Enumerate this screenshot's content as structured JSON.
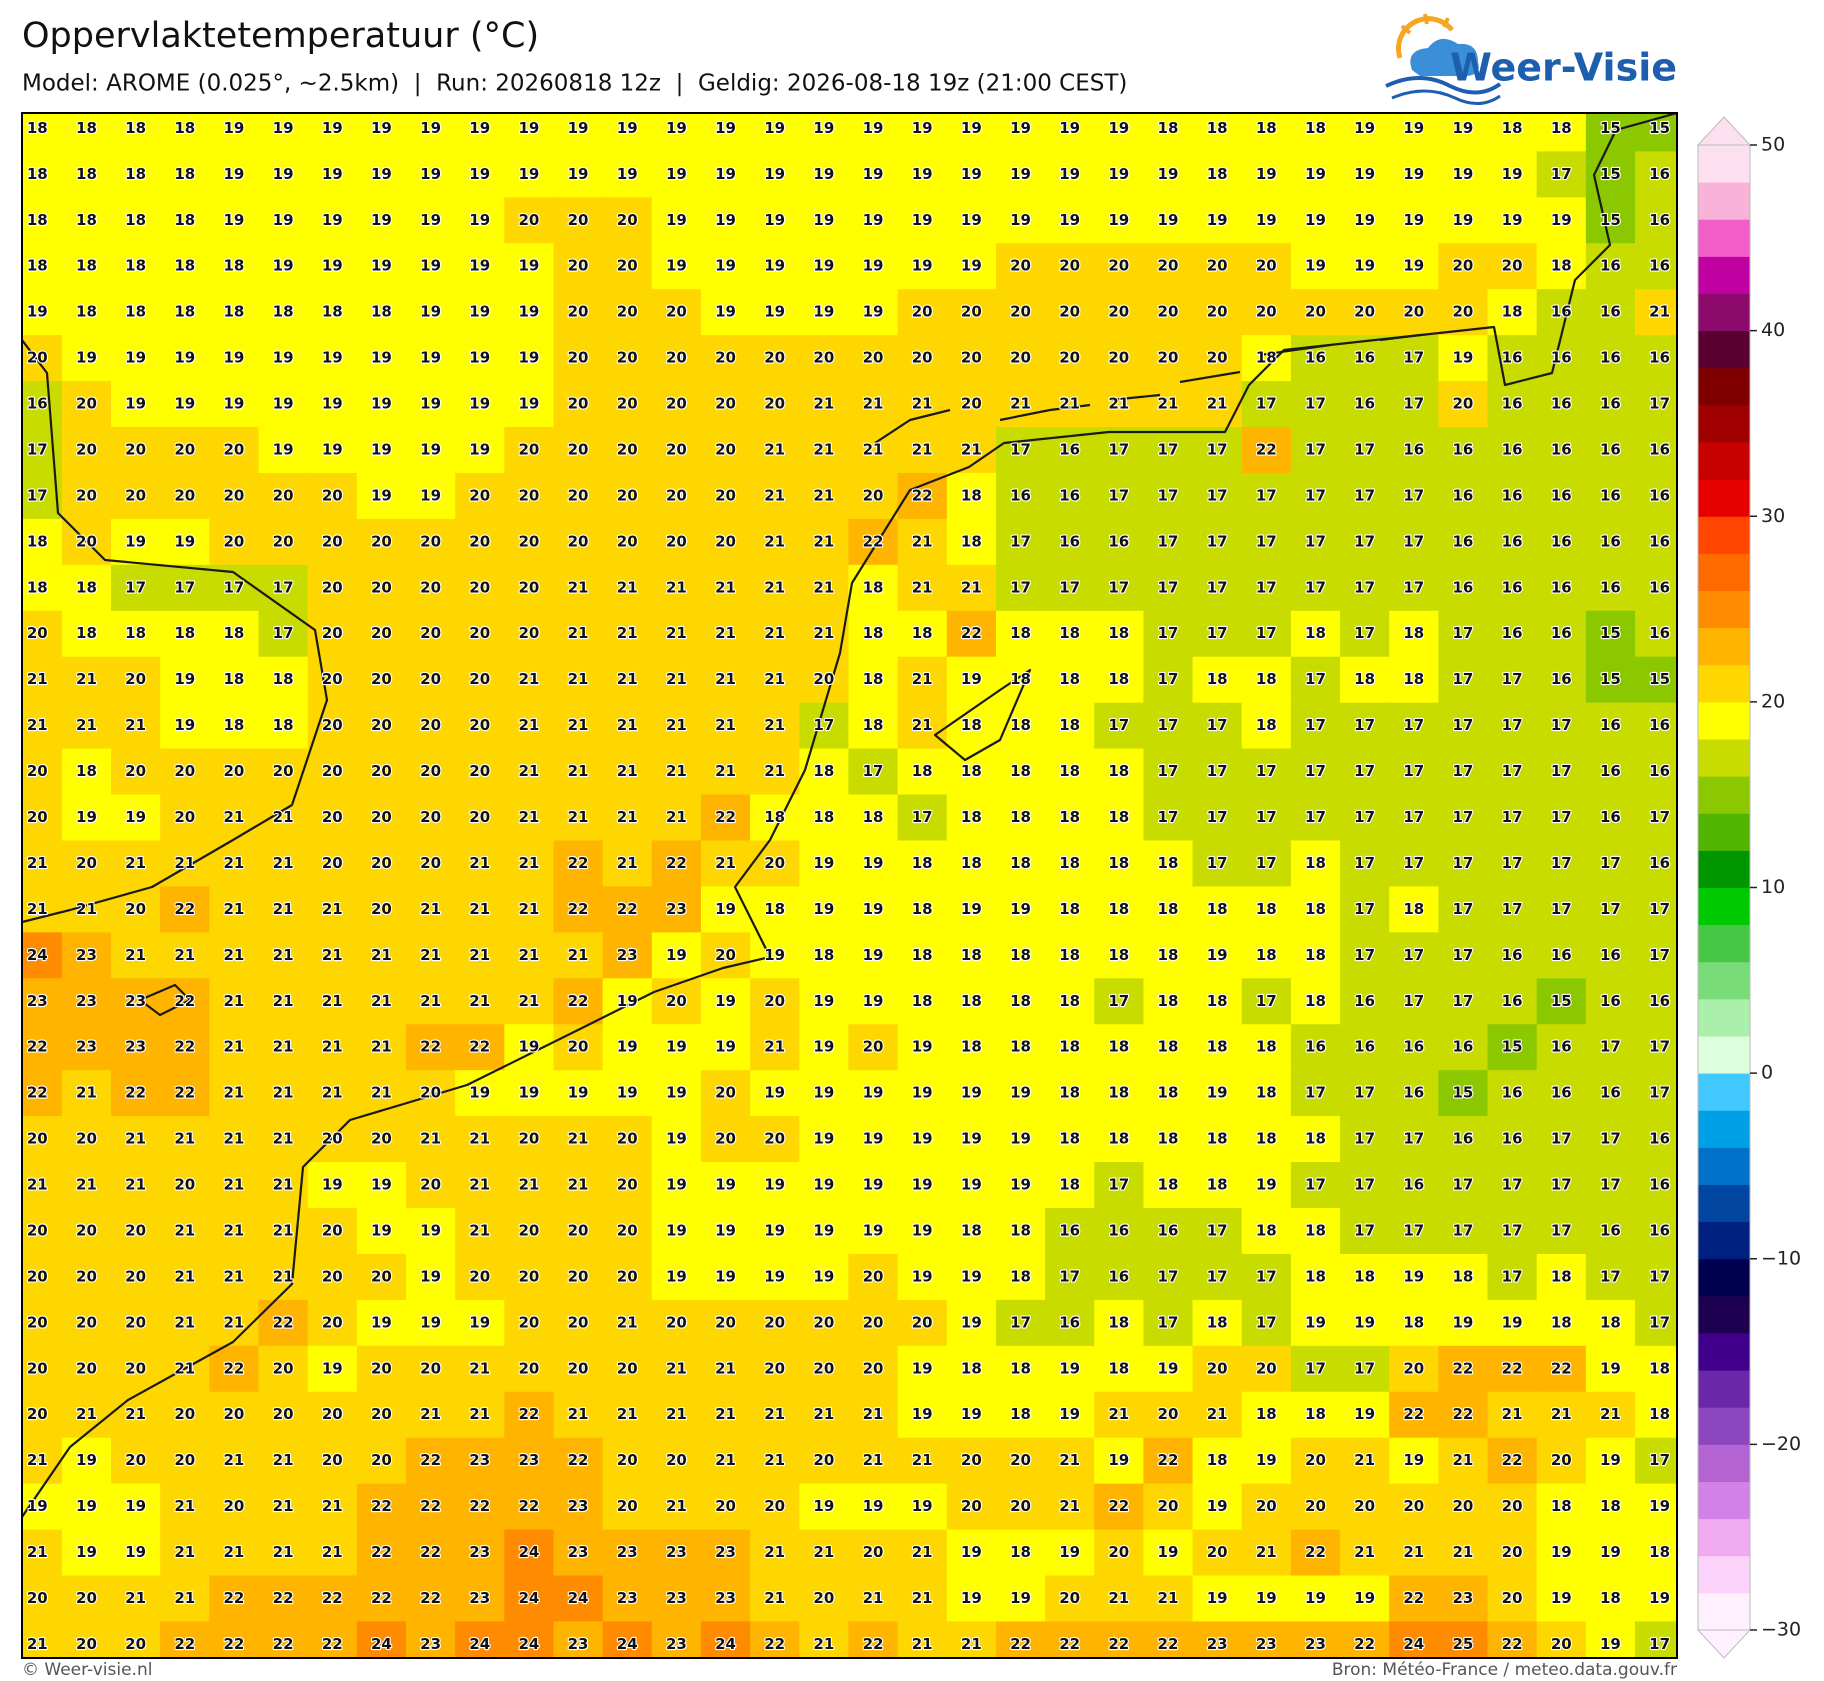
{
  "header": {
    "title": "Oppervlaktetemperatuur (°C)",
    "subtitle": "Model: AROME (0.025°, ~2.5km)  |  Run: 20260818 12z  |  Geldig: 2026-08-18 19z (21:00 CEST)"
  },
  "logo": {
    "text": "Weer-Visie"
  },
  "map": {
    "values": [
      [
        18,
        18,
        18,
        18,
        19,
        19,
        19,
        19,
        19,
        19,
        19,
        19,
        19,
        19,
        19,
        19,
        19,
        19,
        19,
        19,
        19,
        19,
        19,
        18,
        18,
        18,
        18,
        19,
        19,
        19,
        18,
        18,
        15,
        15
      ],
      [
        18,
        18,
        18,
        18,
        19,
        19,
        19,
        19,
        19,
        19,
        19,
        19,
        19,
        19,
        19,
        19,
        19,
        19,
        19,
        19,
        19,
        19,
        19,
        19,
        18,
        19,
        19,
        19,
        19,
        19,
        19,
        17,
        15,
        16
      ],
      [
        18,
        18,
        18,
        18,
        19,
        19,
        19,
        19,
        19,
        19,
        20,
        20,
        20,
        19,
        19,
        19,
        19,
        19,
        19,
        19,
        19,
        19,
        19,
        19,
        19,
        19,
        19,
        19,
        19,
        19,
        19,
        19,
        15,
        16
      ],
      [
        18,
        18,
        18,
        18,
        18,
        19,
        19,
        19,
        19,
        19,
        19,
        20,
        20,
        19,
        19,
        19,
        19,
        19,
        19,
        19,
        20,
        20,
        20,
        20,
        20,
        20,
        19,
        19,
        19,
        20,
        20,
        18,
        16,
        16
      ],
      [
        19,
        18,
        18,
        18,
        18,
        18,
        18,
        18,
        19,
        19,
        19,
        20,
        20,
        20,
        19,
        19,
        19,
        19,
        20,
        20,
        20,
        20,
        20,
        20,
        20,
        20,
        20,
        20,
        20,
        20,
        18,
        16,
        16,
        21
      ],
      [
        20,
        19,
        19,
        19,
        19,
        19,
        19,
        19,
        19,
        19,
        19,
        20,
        20,
        20,
        20,
        20,
        20,
        20,
        20,
        20,
        20,
        20,
        20,
        20,
        20,
        18,
        16,
        16,
        17,
        19,
        16,
        16,
        16,
        16
      ],
      [
        16,
        20,
        19,
        19,
        19,
        19,
        19,
        19,
        19,
        19,
        19,
        20,
        20,
        20,
        20,
        20,
        21,
        21,
        21,
        20,
        21,
        21,
        21,
        21,
        21,
        17,
        17,
        16,
        17,
        20,
        16,
        16,
        16,
        17
      ],
      [
        17,
        20,
        20,
        20,
        20,
        19,
        19,
        19,
        19,
        19,
        20,
        20,
        20,
        20,
        20,
        21,
        21,
        21,
        21,
        21,
        17,
        16,
        17,
        17,
        17,
        22,
        17,
        17,
        16,
        16,
        16,
        16,
        16,
        16
      ],
      [
        17,
        20,
        20,
        20,
        20,
        20,
        20,
        19,
        19,
        20,
        20,
        20,
        20,
        20,
        20,
        21,
        21,
        20,
        22,
        18,
        16,
        16,
        17,
        17,
        17,
        17,
        17,
        17,
        17,
        16,
        16,
        16,
        16,
        16
      ],
      [
        18,
        20,
        19,
        19,
        20,
        20,
        20,
        20,
        20,
        20,
        20,
        20,
        20,
        20,
        20,
        21,
        21,
        22,
        21,
        18,
        17,
        16,
        16,
        17,
        17,
        17,
        17,
        17,
        17,
        16,
        16,
        16,
        16,
        16
      ],
      [
        18,
        18,
        17,
        17,
        17,
        17,
        20,
        20,
        20,
        20,
        20,
        21,
        21,
        21,
        21,
        21,
        21,
        18,
        21,
        21,
        17,
        17,
        17,
        17,
        17,
        17,
        17,
        17,
        17,
        16,
        16,
        16,
        16,
        16
      ],
      [
        20,
        18,
        18,
        18,
        18,
        17,
        20,
        20,
        20,
        20,
        20,
        21,
        21,
        21,
        21,
        21,
        21,
        18,
        18,
        22,
        18,
        18,
        18,
        17,
        17,
        17,
        18,
        17,
        18,
        17,
        16,
        16,
        15,
        16
      ],
      [
        21,
        21,
        20,
        19,
        18,
        18,
        20,
        20,
        20,
        20,
        21,
        21,
        21,
        21,
        21,
        21,
        20,
        18,
        21,
        19,
        18,
        18,
        18,
        17,
        18,
        18,
        17,
        18,
        18,
        17,
        17,
        16,
        15,
        15
      ],
      [
        21,
        21,
        21,
        19,
        18,
        18,
        20,
        20,
        20,
        20,
        21,
        21,
        21,
        21,
        21,
        21,
        17,
        18,
        21,
        18,
        18,
        18,
        17,
        17,
        17,
        18,
        17,
        17,
        17,
        17,
        17,
        17,
        16,
        16
      ],
      [
        20,
        18,
        20,
        20,
        20,
        20,
        20,
        20,
        20,
        20,
        21,
        21,
        21,
        21,
        21,
        21,
        18,
        17,
        18,
        18,
        18,
        18,
        18,
        17,
        17,
        17,
        17,
        17,
        17,
        17,
        17,
        17,
        16,
        16
      ],
      [
        20,
        19,
        19,
        20,
        21,
        21,
        20,
        20,
        20,
        20,
        21,
        21,
        21,
        21,
        22,
        18,
        18,
        18,
        17,
        18,
        18,
        18,
        18,
        17,
        17,
        17,
        17,
        17,
        17,
        17,
        17,
        17,
        16,
        17
      ],
      [
        21,
        20,
        21,
        21,
        21,
        21,
        20,
        20,
        20,
        21,
        21,
        22,
        21,
        22,
        21,
        20,
        19,
        19,
        18,
        18,
        18,
        18,
        18,
        18,
        17,
        17,
        18,
        17,
        17,
        17,
        17,
        17,
        17,
        16
      ],
      [
        21,
        21,
        20,
        22,
        21,
        21,
        21,
        20,
        21,
        21,
        21,
        22,
        22,
        23,
        19,
        18,
        19,
        19,
        18,
        19,
        19,
        18,
        18,
        18,
        18,
        18,
        18,
        17,
        18,
        17,
        17,
        17,
        17,
        17
      ],
      [
        24,
        23,
        21,
        21,
        21,
        21,
        21,
        21,
        21,
        21,
        21,
        21,
        23,
        19,
        20,
        19,
        18,
        19,
        18,
        18,
        18,
        18,
        18,
        18,
        19,
        18,
        18,
        17,
        17,
        17,
        16,
        16,
        16,
        17
      ],
      [
        23,
        23,
        23,
        22,
        21,
        21,
        21,
        21,
        21,
        21,
        21,
        22,
        19,
        20,
        19,
        20,
        19,
        19,
        18,
        18,
        18,
        18,
        17,
        18,
        18,
        17,
        18,
        16,
        17,
        17,
        16,
        15,
        16,
        16
      ],
      [
        22,
        23,
        23,
        22,
        21,
        21,
        21,
        21,
        22,
        22,
        19,
        20,
        19,
        19,
        19,
        21,
        19,
        20,
        19,
        18,
        18,
        18,
        18,
        18,
        18,
        18,
        16,
        16,
        16,
        16,
        15,
        16,
        17,
        17
      ],
      [
        22,
        21,
        22,
        22,
        21,
        21,
        21,
        21,
        20,
        19,
        19,
        19,
        19,
        19,
        20,
        19,
        19,
        19,
        19,
        19,
        19,
        18,
        18,
        18,
        19,
        18,
        17,
        17,
        16,
        15,
        16,
        16,
        16,
        17
      ],
      [
        20,
        20,
        21,
        21,
        21,
        21,
        20,
        20,
        21,
        21,
        20,
        21,
        20,
        19,
        20,
        20,
        19,
        19,
        19,
        19,
        19,
        18,
        18,
        18,
        18,
        18,
        18,
        17,
        17,
        16,
        16,
        17,
        17,
        16
      ],
      [
        21,
        21,
        21,
        20,
        21,
        21,
        19,
        19,
        20,
        21,
        21,
        21,
        20,
        19,
        19,
        19,
        19,
        19,
        19,
        19,
        19,
        18,
        17,
        18,
        18,
        19,
        17,
        17,
        16,
        17,
        17,
        17,
        17,
        16
      ],
      [
        20,
        20,
        20,
        21,
        21,
        21,
        20,
        19,
        19,
        21,
        20,
        20,
        20,
        19,
        19,
        19,
        19,
        19,
        19,
        18,
        18,
        16,
        16,
        16,
        17,
        18,
        18,
        17,
        17,
        17,
        17,
        17,
        16,
        16
      ],
      [
        20,
        20,
        20,
        21,
        21,
        21,
        20,
        20,
        19,
        20,
        20,
        20,
        20,
        19,
        19,
        19,
        19,
        20,
        19,
        19,
        18,
        17,
        16,
        17,
        17,
        17,
        18,
        18,
        19,
        18,
        17,
        18,
        17,
        17
      ],
      [
        20,
        20,
        20,
        21,
        21,
        22,
        20,
        19,
        19,
        19,
        20,
        20,
        21,
        20,
        20,
        20,
        20,
        20,
        20,
        19,
        17,
        16,
        18,
        17,
        18,
        17,
        19,
        19,
        18,
        19,
        19,
        18,
        18,
        17
      ],
      [
        20,
        20,
        20,
        21,
        22,
        20,
        19,
        20,
        20,
        21,
        20,
        20,
        20,
        21,
        21,
        20,
        20,
        20,
        19,
        18,
        18,
        19,
        18,
        19,
        20,
        20,
        17,
        17,
        20,
        22,
        22,
        22,
        19,
        18
      ],
      [
        20,
        21,
        21,
        20,
        20,
        20,
        20,
        20,
        21,
        21,
        22,
        21,
        21,
        21,
        21,
        21,
        21,
        21,
        19,
        19,
        18,
        19,
        21,
        20,
        21,
        18,
        18,
        19,
        22,
        22,
        21,
        21,
        21,
        18
      ],
      [
        21,
        19,
        20,
        20,
        21,
        21,
        20,
        20,
        22,
        23,
        23,
        22,
        20,
        20,
        21,
        21,
        20,
        21,
        21,
        20,
        20,
        21,
        19,
        22,
        18,
        19,
        20,
        21,
        19,
        21,
        22,
        20,
        19,
        17
      ],
      [
        19,
        19,
        19,
        21,
        20,
        21,
        21,
        22,
        22,
        22,
        22,
        23,
        20,
        21,
        20,
        20,
        19,
        19,
        19,
        20,
        20,
        21,
        22,
        20,
        19,
        20,
        20,
        20,
        20,
        20,
        20,
        18,
        18,
        19
      ],
      [
        21,
        19,
        19,
        21,
        21,
        21,
        21,
        22,
        22,
        23,
        24,
        23,
        23,
        23,
        23,
        21,
        21,
        20,
        21,
        19,
        18,
        19,
        20,
        19,
        20,
        21,
        22,
        21,
        21,
        21,
        20,
        19,
        19,
        18
      ],
      [
        20,
        20,
        21,
        21,
        22,
        22,
        22,
        22,
        22,
        23,
        24,
        24,
        23,
        23,
        23,
        21,
        20,
        21,
        21,
        19,
        19,
        20,
        21,
        21,
        19,
        19,
        19,
        19,
        22,
        23,
        20,
        19,
        18,
        19
      ],
      [
        21,
        20,
        20,
        22,
        22,
        22,
        22,
        24,
        23,
        24,
        24,
        23,
        24,
        23,
        24,
        22,
        21,
        22,
        21,
        21,
        22,
        22,
        22,
        22,
        23,
        23,
        23,
        22,
        24,
        25,
        22,
        20,
        19,
        17
      ]
    ]
  },
  "colorbar": {
    "lim": [
      -30,
      50
    ],
    "ticks": [
      {
        "value": -30,
        "label": "−30"
      },
      {
        "value": -20,
        "label": "−20"
      },
      {
        "value": -10,
        "label": "−10"
      },
      0,
      10,
      20,
      30,
      40,
      50
    ],
    "colors": [
      "#fff0ff",
      "#fad2fa",
      "#f0aaf0",
      "#d282e6",
      "#b464d2",
      "#8c46be",
      "#6a28a8",
      "#40008c",
      "#1e0050",
      "#000050",
      "#002080",
      "#0046a0",
      "#0070c8",
      "#00a0e6",
      "#40c8ff",
      "#dcffdc",
      "#aaf0aa",
      "#78dc78",
      "#46c846",
      "#00c800",
      "#009600",
      "#50b400",
      "#8cc800",
      "#c8dc00",
      "#ffff00",
      "#ffd700",
      "#ffb400",
      "#ff8c00",
      "#ff6a00",
      "#ff4500",
      "#e60000",
      "#c80000",
      "#a00000",
      "#800000",
      "#5a0030",
      "#8b0a6c",
      "#c000a0",
      "#f25ec8",
      "#f9b3d9",
      "#fde0ef"
    ]
  },
  "footer": {
    "left": "© Weer-visie.nl",
    "right": "Bron: Météo-France / meteo.data.gouv.fr"
  }
}
